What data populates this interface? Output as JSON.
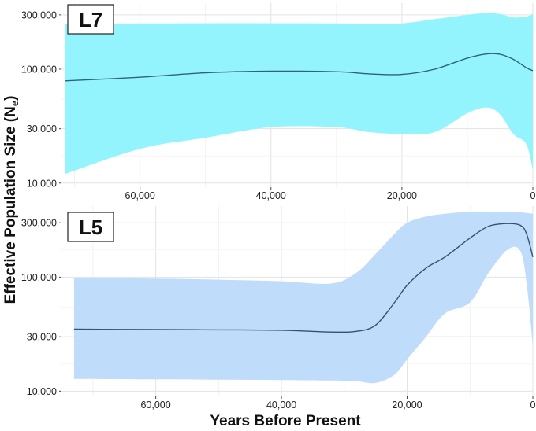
{
  "chart_data": [
    {
      "type": "area",
      "panel_label": "L7",
      "x_reversed": true,
      "y_scale": "log",
      "xlim": [
        72000,
        0
      ],
      "ylim": [
        9200,
        380000
      ],
      "x_ticks": [
        60000,
        40000,
        20000,
        0
      ],
      "x_tick_labels": [
        "60,000",
        "40,000",
        "20,000",
        "0"
      ],
      "y_ticks": [
        10000,
        30000,
        100000,
        300000
      ],
      "y_tick_labels": [
        "10,000",
        "30,000",
        "100,000",
        "300,000"
      ],
      "grid": true,
      "band_color": "#94f4fd",
      "line_color": "#2f6377",
      "x": [
        71500,
        60000,
        50000,
        40000,
        30000,
        25000,
        20000,
        15000,
        10000,
        7000,
        5000,
        3000,
        1000,
        0
      ],
      "median": [
        79000,
        85000,
        93000,
        96000,
        95000,
        91000,
        90000,
        100000,
        125000,
        136000,
        135000,
        122000,
        103000,
        97000
      ],
      "lower": [
        12000,
        20000,
        25000,
        31000,
        31000,
        28000,
        27000,
        28000,
        41000,
        46000,
        40000,
        27000,
        22000,
        13000
      ],
      "upper": [
        250000,
        252000,
        253000,
        253000,
        252000,
        250000,
        252000,
        275000,
        300000,
        310000,
        305000,
        285000,
        290000,
        305000
      ]
    },
    {
      "type": "area",
      "panel_label": "L5",
      "x_reversed": true,
      "y_scale": "log",
      "xlim": [
        75000,
        0
      ],
      "ylim": [
        9000,
        420000
      ],
      "x_ticks": [
        60000,
        40000,
        20000,
        0
      ],
      "x_tick_labels": [
        "60,000",
        "40,000",
        "20,000",
        "0"
      ],
      "y_ticks": [
        10000,
        30000,
        100000,
        300000
      ],
      "y_tick_labels": [
        "10,000",
        "30,000",
        "100,000",
        "300,000"
      ],
      "grid": true,
      "band_color": "#bfdcfb",
      "line_color": "#34546c",
      "x": [
        73000,
        60000,
        50000,
        40000,
        32000,
        28000,
        25000,
        22000,
        20000,
        17000,
        14000,
        10000,
        7000,
        4000,
        2000,
        1000,
        0
      ],
      "median": [
        35000,
        34700,
        34500,
        34200,
        33000,
        33500,
        38000,
        60000,
        85000,
        120000,
        150000,
        220000,
        280000,
        295000,
        285000,
        240000,
        150000
      ],
      "lower": [
        12800,
        12700,
        12600,
        12500,
        12400,
        12200,
        11800,
        14000,
        19000,
        30000,
        48000,
        60000,
        110000,
        175000,
        170000,
        90000,
        25000
      ],
      "upper": [
        98000,
        97000,
        95000,
        92000,
        88000,
        110000,
        160000,
        240000,
        300000,
        340000,
        360000,
        375000,
        375000,
        375000,
        372000,
        365000,
        360000
      ]
    }
  ],
  "axes": {
    "xlabel": "Years Before Present",
    "ylabel_main": "Effective Population Size (N",
    "ylabel_sub": "e",
    "ylabel_close": ")"
  }
}
